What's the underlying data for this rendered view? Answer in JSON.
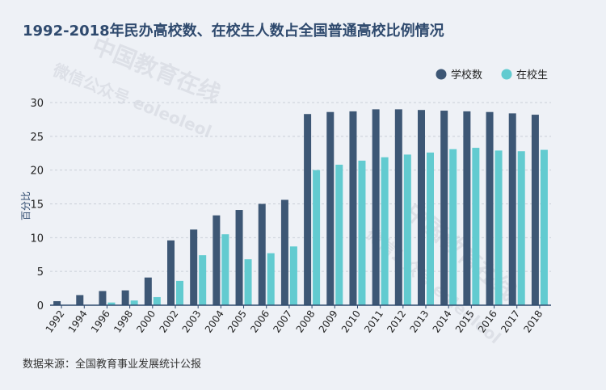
{
  "title": "1992-2018年民办高校数、在校生人数占全国普通高校比例情况",
  "source": "数据来源：全国教育事业发展统计公报",
  "watermark": [
    "中国教育在线",
    "微信公众号 eoleoleol"
  ],
  "colors": {
    "series1": "#3d5775",
    "series2": "#62cbd0",
    "title": "#2f4a6e",
    "background": "#eef1f6"
  },
  "chart_data": {
    "type": "bar",
    "title": "1992-2018年民办高校数、在校生人数占全国普通高校比例情况",
    "ylabel": "百分比",
    "xlabel": "",
    "ylim": [
      0,
      30
    ],
    "yticks": [
      0,
      5,
      10,
      15,
      20,
      25,
      30
    ],
    "grid": true,
    "legend_position": "top-right",
    "categories": [
      "1992",
      "1994",
      "1996",
      "1998",
      "2000",
      "2002",
      "2003",
      "2004",
      "2005",
      "2006",
      "2007",
      "2008",
      "2009",
      "2010",
      "2011",
      "2012",
      "2013",
      "2014",
      "2015",
      "2016",
      "2017",
      "2018"
    ],
    "series": [
      {
        "name": "学校数",
        "color": "#3d5775",
        "values": [
          0.6,
          1.5,
          2.1,
          2.2,
          4.1,
          9.6,
          11.2,
          13.3,
          14.1,
          15.0,
          15.6,
          28.3,
          28.6,
          28.7,
          29.0,
          29.0,
          28.9,
          28.8,
          28.7,
          28.6,
          28.4,
          28.2
        ]
      },
      {
        "name": "在校生",
        "color": "#62cbd0",
        "values": [
          0.0,
          0.0,
          0.4,
          0.7,
          1.2,
          3.6,
          7.4,
          10.5,
          6.8,
          7.7,
          8.7,
          20.0,
          20.8,
          21.4,
          21.9,
          22.3,
          22.6,
          23.1,
          23.3,
          22.9,
          22.8,
          23.0
        ]
      }
    ]
  }
}
